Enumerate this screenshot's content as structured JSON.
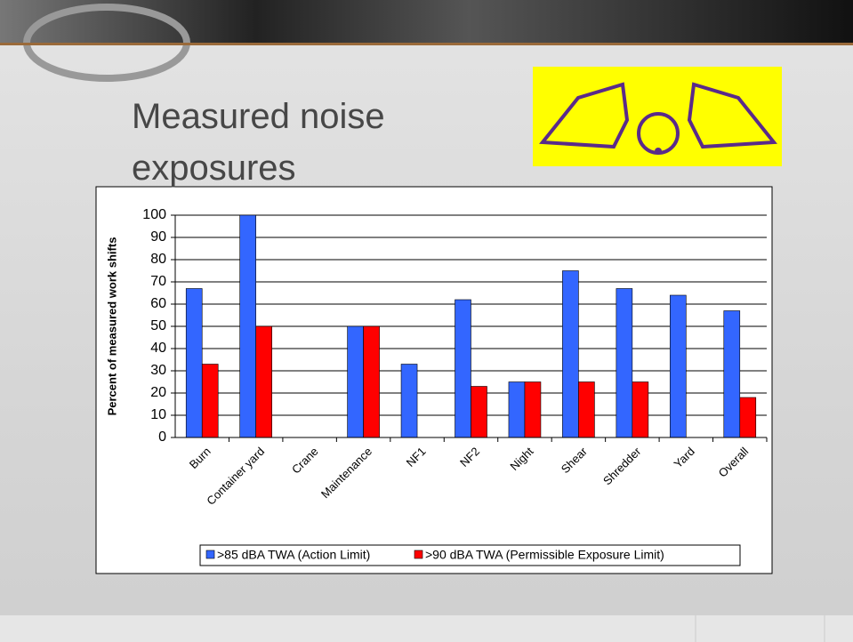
{
  "chart_data": {
    "type": "bar",
    "title": "Measured noise exposures",
    "y_label": "Percent of measured work shifts",
    "categories": [
      "Burn",
      "Container yard",
      "Crane",
      "Maintenance",
      "NF1",
      "NF2",
      "Night",
      "Shear",
      "Shredder",
      "Yard",
      "Overall"
    ],
    "series": [
      {
        "name": ">85 dBA TWA (Action Limit)",
        "color": "#3366ff",
        "values": [
          67,
          100,
          0,
          50,
          33,
          62,
          25,
          75,
          67,
          64,
          57
        ]
      },
      {
        "name": ">90 dBA TWA (Permissible Exposure Limit)",
        "color": "#ff0000",
        "values": [
          33,
          50,
          0,
          50,
          0,
          23,
          25,
          25,
          25,
          0,
          18
        ]
      }
    ],
    "ylim": [
      0,
      100
    ],
    "yticks": [
      0,
      10,
      20,
      30,
      40,
      50,
      60,
      70,
      80,
      90,
      100
    ],
    "grid": true,
    "legend": "bottom"
  }
}
